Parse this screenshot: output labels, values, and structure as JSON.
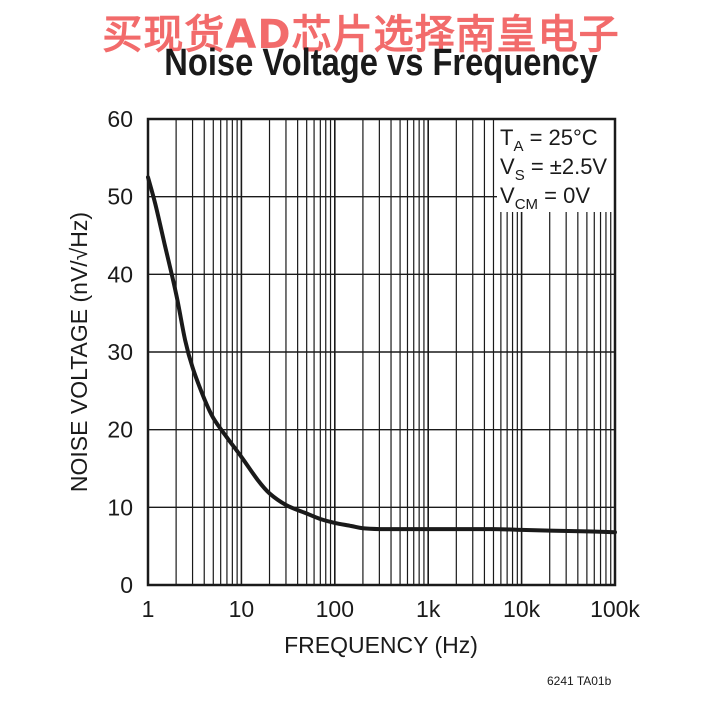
{
  "watermark": "买现货AD芯片选择南皇电子",
  "chart_data": {
    "type": "line",
    "title": "Noise Voltage vs Frequency",
    "xlabel": "FREQUENCY (Hz)",
    "ylabel": "NOISE VOLTAGE (nV/√Hz)",
    "xscale": "log",
    "xlim": [
      1,
      100000
    ],
    "ylim": [
      0,
      60
    ],
    "xticks": [
      1,
      10,
      100,
      1000,
      10000,
      100000
    ],
    "xtick_labels": [
      "1",
      "10",
      "100",
      "1k",
      "10k",
      "100k"
    ],
    "yticks": [
      0,
      10,
      20,
      30,
      40,
      50,
      60
    ],
    "ytick_labels": [
      "0",
      "10",
      "20",
      "30",
      "40",
      "50",
      "60"
    ],
    "grid": true,
    "conditions": [
      {
        "main": "T",
        "sub": "A",
        "rest": " = 25°C"
      },
      {
        "main": "V",
        "sub": "S",
        "rest": " = ±2.5V"
      },
      {
        "main": "V",
        "sub": "CM",
        "rest": " = 0V"
      }
    ],
    "series": [
      {
        "x": [
          1,
          1.2,
          1.5,
          2,
          2.5,
          3,
          4,
          5,
          7,
          10,
          15,
          20,
          30,
          50,
          70,
          100,
          150,
          200,
          300,
          500,
          1000,
          2000,
          5000,
          10000,
          20000,
          50000,
          100000
        ],
        "y": [
          52.5,
          49,
          44,
          37.5,
          31.5,
          28,
          24,
          21.5,
          19,
          16.5,
          13.5,
          11.8,
          10.3,
          9.2,
          8.5,
          8.0,
          7.6,
          7.3,
          7.2,
          7.2,
          7.2,
          7.2,
          7.2,
          7.1,
          7.0,
          6.9,
          6.8
        ],
        "color": "#1a1a1a"
      }
    ],
    "figure_code": "6241 TA01b"
  }
}
